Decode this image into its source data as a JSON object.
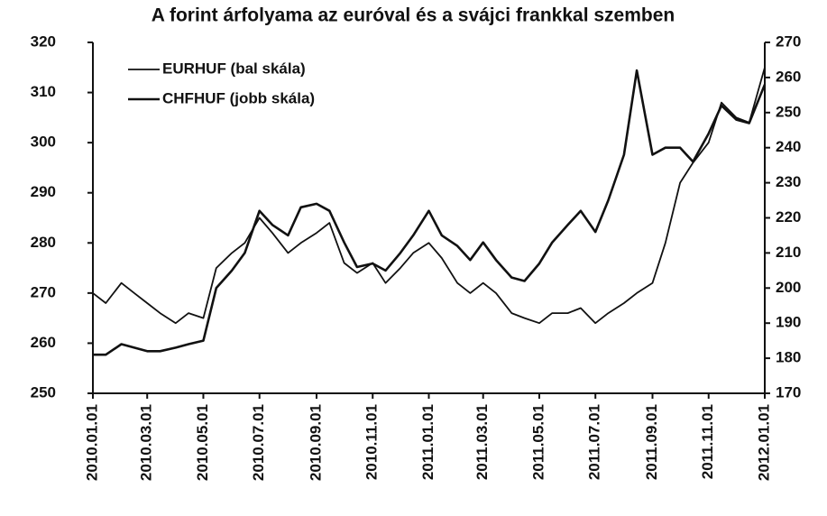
{
  "chart_data": {
    "type": "line",
    "title": "A forint árfolyama az euróval és a svájci frankkal szemben",
    "x": [
      "2010.01.01",
      "2010.01.15",
      "2010.02.01",
      "2010.02.15",
      "2010.03.01",
      "2010.03.15",
      "2010.04.01",
      "2010.04.15",
      "2010.05.01",
      "2010.05.15",
      "2010.06.01",
      "2010.06.15",
      "2010.07.01",
      "2010.07.15",
      "2010.08.01",
      "2010.08.15",
      "2010.09.01",
      "2010.09.15",
      "2010.10.01",
      "2010.10.15",
      "2010.11.01",
      "2010.11.15",
      "2010.12.01",
      "2010.12.15",
      "2011.01.01",
      "2011.01.15",
      "2011.02.01",
      "2011.02.15",
      "2011.03.01",
      "2011.03.15",
      "2011.04.01",
      "2011.04.15",
      "2011.05.01",
      "2011.05.15",
      "2011.06.01",
      "2011.06.15",
      "2011.07.01",
      "2011.07.15",
      "2011.08.01",
      "2011.08.15",
      "2011.09.01",
      "2011.09.15",
      "2011.10.01",
      "2011.10.15",
      "2011.11.01",
      "2011.11.15",
      "2011.12.01",
      "2011.12.15",
      "2012.01.01"
    ],
    "series": [
      {
        "name": "EURHUF (bal skála)",
        "color": "#111111",
        "axis": "y",
        "values": [
          270,
          268,
          272,
          270,
          268,
          266,
          264,
          266,
          265,
          275,
          278,
          280,
          285,
          282,
          278,
          280,
          282,
          284,
          276,
          274,
          276,
          272,
          275,
          278,
          280,
          277,
          272,
          270,
          272,
          270,
          266,
          265,
          264,
          266,
          266,
          267,
          264,
          266,
          268,
          270,
          272,
          280,
          292,
          296,
          300,
          308,
          305,
          304,
          315
        ]
      },
      {
        "name": "CHFHUF (jobb skála)",
        "color": "#111111",
        "axis": "y2",
        "values": [
          181,
          181,
          184,
          183,
          182,
          182,
          183,
          184,
          185,
          200,
          205,
          210,
          222,
          218,
          215,
          223,
          224,
          222,
          213,
          206,
          207,
          205,
          210,
          215,
          222,
          215,
          212,
          208,
          213,
          208,
          203,
          202,
          207,
          213,
          218,
          222,
          216,
          225,
          238,
          262,
          238,
          240,
          240,
          236,
          244,
          252,
          248,
          247,
          258
        ]
      }
    ],
    "xlim": [
      "2010.01.01",
      "2012.01.01"
    ],
    "xticks": [
      "2010.01.01",
      "2010.03.01",
      "2010.05.01",
      "2010.07.01",
      "2010.09.01",
      "2010.11.01",
      "2011.01.01",
      "2011.03.01",
      "2011.05.01",
      "2011.07.01",
      "2011.09.01",
      "2011.11.01",
      "2012.01.01"
    ],
    "ylim": [
      250,
      320
    ],
    "yticks": [
      250,
      260,
      270,
      280,
      290,
      300,
      310,
      320
    ],
    "y2lim": [
      170,
      270
    ],
    "y2ticks": [
      170,
      180,
      190,
      200,
      210,
      220,
      230,
      240,
      250,
      260,
      270
    ],
    "legend": "upper left"
  }
}
